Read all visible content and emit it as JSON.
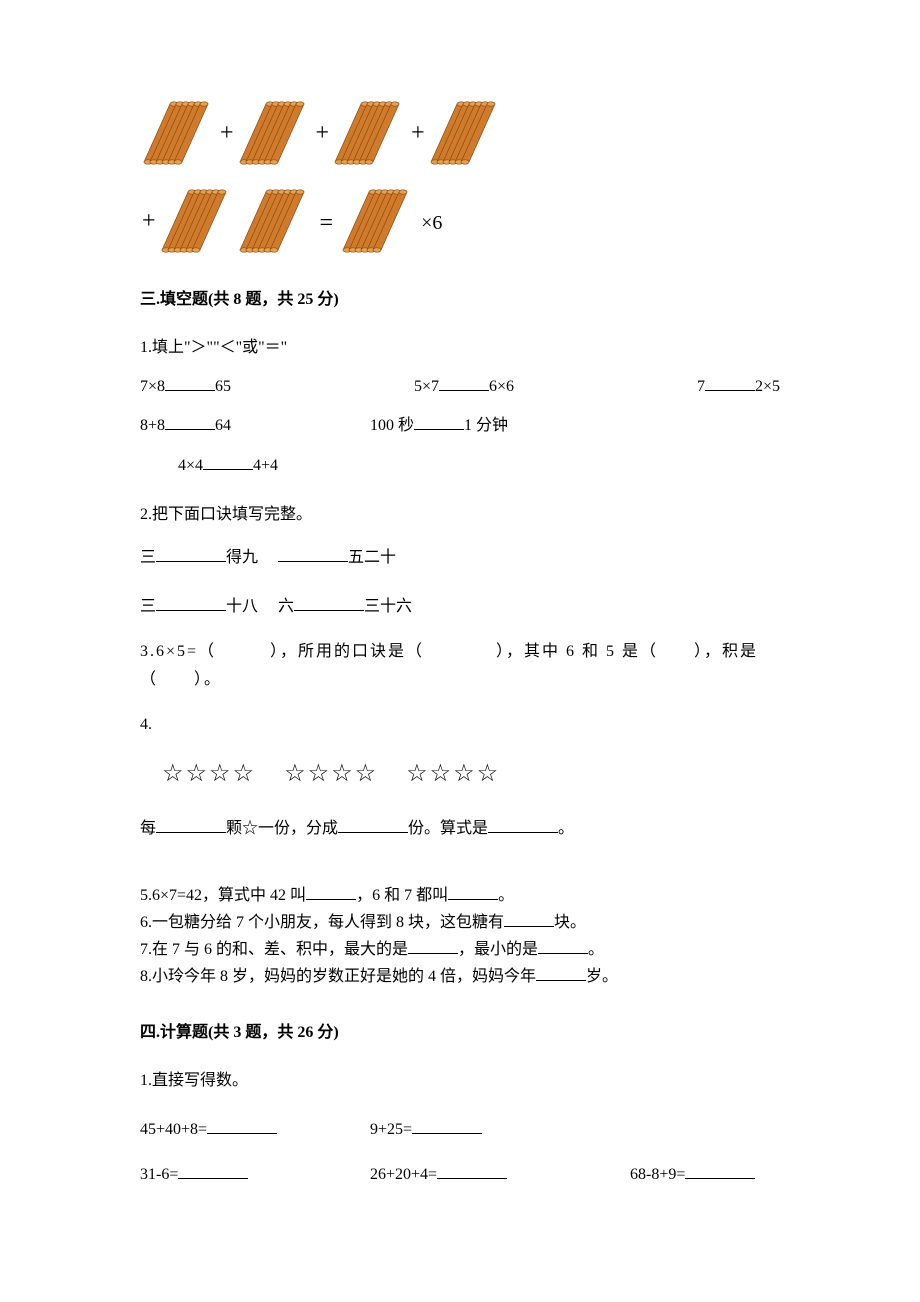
{
  "diagram": {
    "stick_count_per_bundle": 6,
    "stick_color": "#d07a2c",
    "stick_outline": "#8b4a12",
    "tip_color": "#e8a050",
    "plus": "+",
    "equals": "=",
    "times6": "×6"
  },
  "sec3": {
    "header": "三.填空题(共 8 题，共 25 分)",
    "q1": {
      "prompt": "1.填上\"＞\"\"＜\"或\"＝\"",
      "r1a": "7×8",
      "r1a_rhs": "65",
      "r1b_l": "5×7",
      "r1b_r": "6×6",
      "r1c_l": "7",
      "r1c_r": "2×5",
      "r2a": "8+8",
      "r2a_rhs": "64",
      "r2b_l": "100 秒",
      "r2b_r": "1 分钟",
      "r3_l": "4×4",
      "r3_r": "4+4"
    },
    "q2": {
      "prompt": "2.把下面口诀填写完整。",
      "l1a_pre": "三",
      "l1a_post": "得九",
      "l1b_post": "五二十",
      "l2a_pre": "三",
      "l2a_post": "十八",
      "l2b_pre": "六",
      "l2b_post": "三十六"
    },
    "q3": "3.6×5=（　　　），所用的口诀是（　　　　），其中 6 和 5 是（　　），积是（　　）。",
    "q4_label": "4.",
    "q4_star": "☆",
    "q4_line": {
      "a": "每",
      "b": "颗☆一份，分成",
      "c": "份。算式是",
      "d": "。"
    },
    "q5": {
      "a": "5.6×7=42，算式中 42 叫",
      "b": "，6 和 7 都叫",
      "c": "。"
    },
    "q6": {
      "a": "6.一包糖分给 7 个小朋友，每人得到 8 块，这包糖有",
      "b": "块。"
    },
    "q7": {
      "a": "7.在 7 与 6 的和、差、积中，最大的是",
      "b": "，最小的是",
      "c": "。"
    },
    "q8": {
      "a": "8.小玲今年 8 岁，妈妈的岁数正好是她的 4 倍，妈妈今年",
      "b": "岁。"
    }
  },
  "sec4": {
    "header": "四.计算题(共 3 题，共 26 分)",
    "q1_prompt": "1.直接写得数。",
    "r1a": "45+40+8=",
    "r1b": "9+25=",
    "r2a": "31-6=",
    "r2b": "26+20+4=",
    "r2c": "68-8+9="
  }
}
